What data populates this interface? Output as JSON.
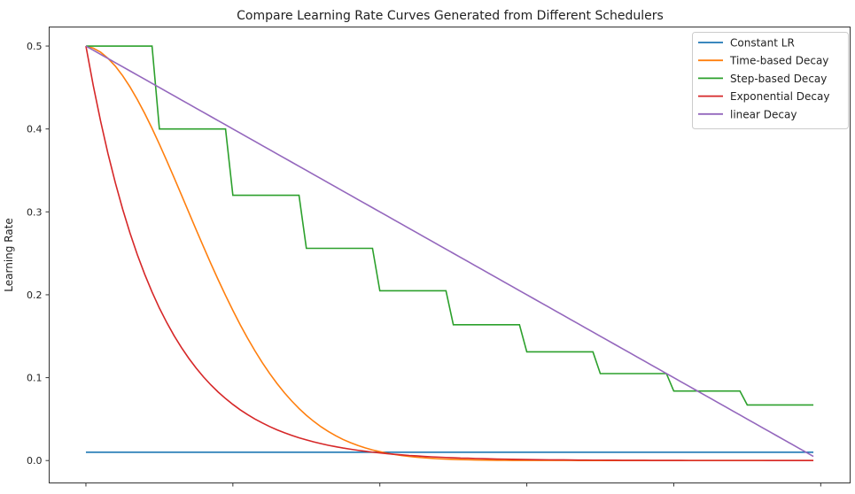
{
  "chart_data": {
    "type": "line",
    "title": "Compare Learning Rate Curves Generated from Different Schedulers",
    "xlabel": "",
    "ylabel": "Learning Rate",
    "xlim": [
      -5,
      104
    ],
    "ylim": [
      -0.027,
      0.523
    ],
    "x_ticks": [
      0,
      20,
      40,
      60,
      80,
      100
    ],
    "y_ticks": [
      0.0,
      0.1,
      0.2,
      0.3,
      0.4,
      0.5
    ],
    "y_tick_labels": [
      "0.0",
      "0.1",
      "0.2",
      "0.3",
      "0.4",
      "0.5"
    ],
    "grid": false,
    "legend_position": "top-right",
    "x_start": 0,
    "series": [
      {
        "name": "Constant LR",
        "color": "#1f77b4",
        "values": [
          0.01,
          0.01,
          0.01,
          0.01,
          0.01,
          0.01,
          0.01,
          0.01,
          0.01,
          0.01,
          0.01,
          0.01,
          0.01,
          0.01,
          0.01,
          0.01,
          0.01,
          0.01,
          0.01,
          0.01,
          0.01,
          0.01,
          0.01,
          0.01,
          0.01,
          0.01,
          0.01,
          0.01,
          0.01,
          0.01,
          0.01,
          0.01,
          0.01,
          0.01,
          0.01,
          0.01,
          0.01,
          0.01,
          0.01,
          0.01,
          0.01,
          0.01,
          0.01,
          0.01,
          0.01,
          0.01,
          0.01,
          0.01,
          0.01,
          0.01,
          0.01,
          0.01,
          0.01,
          0.01,
          0.01,
          0.01,
          0.01,
          0.01,
          0.01,
          0.01,
          0.01,
          0.01,
          0.01,
          0.01,
          0.01,
          0.01,
          0.01,
          0.01,
          0.01,
          0.01,
          0.01,
          0.01,
          0.01,
          0.01,
          0.01,
          0.01,
          0.01,
          0.01,
          0.01,
          0.01,
          0.01,
          0.01,
          0.01,
          0.01,
          0.01,
          0.01,
          0.01,
          0.01,
          0.01,
          0.01,
          0.01,
          0.01,
          0.01,
          0.01,
          0.01,
          0.01,
          0.01,
          0.01,
          0.01,
          0.01
        ]
      },
      {
        "name": "Time-based Decay",
        "color": "#ff7f0e",
        "values": [
          0.5,
          0.4975,
          0.4926,
          0.4853,
          0.4758,
          0.4642,
          0.4507,
          0.4354,
          0.4187,
          0.4007,
          0.3816,
          0.3617,
          0.3412,
          0.3204,
          0.2994,
          0.2785,
          0.2579,
          0.2377,
          0.2181,
          0.1992,
          0.1811,
          0.1638,
          0.1476,
          0.1324,
          0.1182,
          0.1051,
          0.093,
          0.0819,
          0.0719,
          0.0628,
          0.0546,
          0.0473,
          0.0407,
          0.035,
          0.0299,
          0.0254,
          0.0216,
          0.0182,
          0.0153,
          0.0128,
          0.0107,
          0.0088,
          0.0073,
          0.006,
          0.0049,
          0.004,
          0.0033,
          0.0027,
          0.0021,
          0.0017,
          0.0014,
          0.0011,
          0.0009,
          0.0007,
          0.0005,
          0.0004,
          0.0003,
          0.0003,
          0.0002,
          0.0002,
          0.0001,
          0.0001,
          0.0001,
          0.0001,
          0.0001,
          0.0001,
          0.0001,
          0,
          0,
          0,
          0,
          0,
          0,
          0,
          0,
          0,
          0,
          0,
          0,
          0,
          0,
          0,
          0,
          0,
          0,
          0,
          0,
          0,
          0,
          0,
          0,
          0,
          0,
          0,
          0,
          0,
          0,
          0,
          0,
          0
        ]
      },
      {
        "name": "Step-based Decay",
        "color": "#2ca02c",
        "values": [
          0.5,
          0.5,
          0.5,
          0.5,
          0.5,
          0.5,
          0.5,
          0.5,
          0.5,
          0.5,
          0.4,
          0.4,
          0.4,
          0.4,
          0.4,
          0.4,
          0.4,
          0.4,
          0.4,
          0.4,
          0.32,
          0.32,
          0.32,
          0.32,
          0.32,
          0.32,
          0.32,
          0.32,
          0.32,
          0.32,
          0.256,
          0.256,
          0.256,
          0.256,
          0.256,
          0.256,
          0.256,
          0.256,
          0.256,
          0.256,
          0.2048,
          0.2048,
          0.2048,
          0.2048,
          0.2048,
          0.2048,
          0.2048,
          0.2048,
          0.2048,
          0.2048,
          0.1638,
          0.1638,
          0.1638,
          0.1638,
          0.1638,
          0.1638,
          0.1638,
          0.1638,
          0.1638,
          0.1638,
          0.1311,
          0.1311,
          0.1311,
          0.1311,
          0.1311,
          0.1311,
          0.1311,
          0.1311,
          0.1311,
          0.1311,
          0.1049,
          0.1049,
          0.1049,
          0.1049,
          0.1049,
          0.1049,
          0.1049,
          0.1049,
          0.1049,
          0.1049,
          0.0839,
          0.0839,
          0.0839,
          0.0839,
          0.0839,
          0.0839,
          0.0839,
          0.0839,
          0.0839,
          0.0839,
          0.0671,
          0.0671,
          0.0671,
          0.0671,
          0.0671,
          0.0671,
          0.0671,
          0.0671,
          0.0671,
          0.0671
        ]
      },
      {
        "name": "Exponential Decay",
        "color": "#d62728",
        "values": [
          0.5,
          0.4524,
          0.4094,
          0.3704,
          0.3352,
          0.3033,
          0.2744,
          0.2483,
          0.2247,
          0.2033,
          0.1839,
          0.1665,
          0.1506,
          0.1363,
          0.1233,
          0.1116,
          0.1009,
          0.0913,
          0.0826,
          0.0748,
          0.0677,
          0.0612,
          0.0554,
          0.0501,
          0.0454,
          0.041,
          0.0371,
          0.0336,
          0.0304,
          0.0275,
          0.0249,
          0.0225,
          0.0204,
          0.0184,
          0.0167,
          0.0151,
          0.0137,
          0.0124,
          0.0112,
          0.0101,
          0.0092,
          0.0083,
          0.0075,
          0.0068,
          0.0061,
          0.0056,
          0.005,
          0.0045,
          0.0041,
          0.0037,
          0.0034,
          0.003,
          0.0028,
          0.0025,
          0.0023,
          0.002,
          0.0018,
          0.0017,
          0.0015,
          0.0014,
          0.0012,
          0.0011,
          0.001,
          0.0009,
          0.0008,
          0.0008,
          0.0007,
          0.0006,
          0.0006,
          0.0005,
          0.0005,
          0.0004,
          0.0004,
          0.0003,
          0.0003,
          0.0003,
          0.0003,
          0.0002,
          0.0002,
          0.0002,
          0.0002,
          0.0002,
          0.0001,
          0.0001,
          0.0001,
          0.0001,
          0.0001,
          0.0001,
          0.0001,
          0.0001,
          0.0001,
          0.0001,
          0.0001,
          0,
          0,
          0,
          0,
          0,
          0,
          0
        ]
      },
      {
        "name": "linear Decay",
        "color": "#9467bd",
        "values": [
          0.5,
          0.495,
          0.49,
          0.485,
          0.48,
          0.475,
          0.47,
          0.465,
          0.46,
          0.455,
          0.45,
          0.445,
          0.44,
          0.435,
          0.43,
          0.425,
          0.42,
          0.415,
          0.41,
          0.405,
          0.4,
          0.395,
          0.39,
          0.385,
          0.38,
          0.375,
          0.37,
          0.365,
          0.36,
          0.355,
          0.35,
          0.345,
          0.34,
          0.335,
          0.33,
          0.325,
          0.32,
          0.315,
          0.31,
          0.305,
          0.3,
          0.295,
          0.29,
          0.285,
          0.28,
          0.275,
          0.27,
          0.265,
          0.26,
          0.255,
          0.25,
          0.245,
          0.24,
          0.235,
          0.23,
          0.225,
          0.22,
          0.215,
          0.21,
          0.205,
          0.2,
          0.195,
          0.19,
          0.185,
          0.18,
          0.175,
          0.17,
          0.165,
          0.16,
          0.155,
          0.15,
          0.145,
          0.14,
          0.135,
          0.13,
          0.125,
          0.12,
          0.115,
          0.11,
          0.105,
          0.1,
          0.095,
          0.09,
          0.085,
          0.08,
          0.075,
          0.07,
          0.065,
          0.06,
          0.055,
          0.05,
          0.045,
          0.04,
          0.035,
          0.03,
          0.025,
          0.02,
          0.015,
          0.01,
          0.005
        ]
      }
    ]
  }
}
